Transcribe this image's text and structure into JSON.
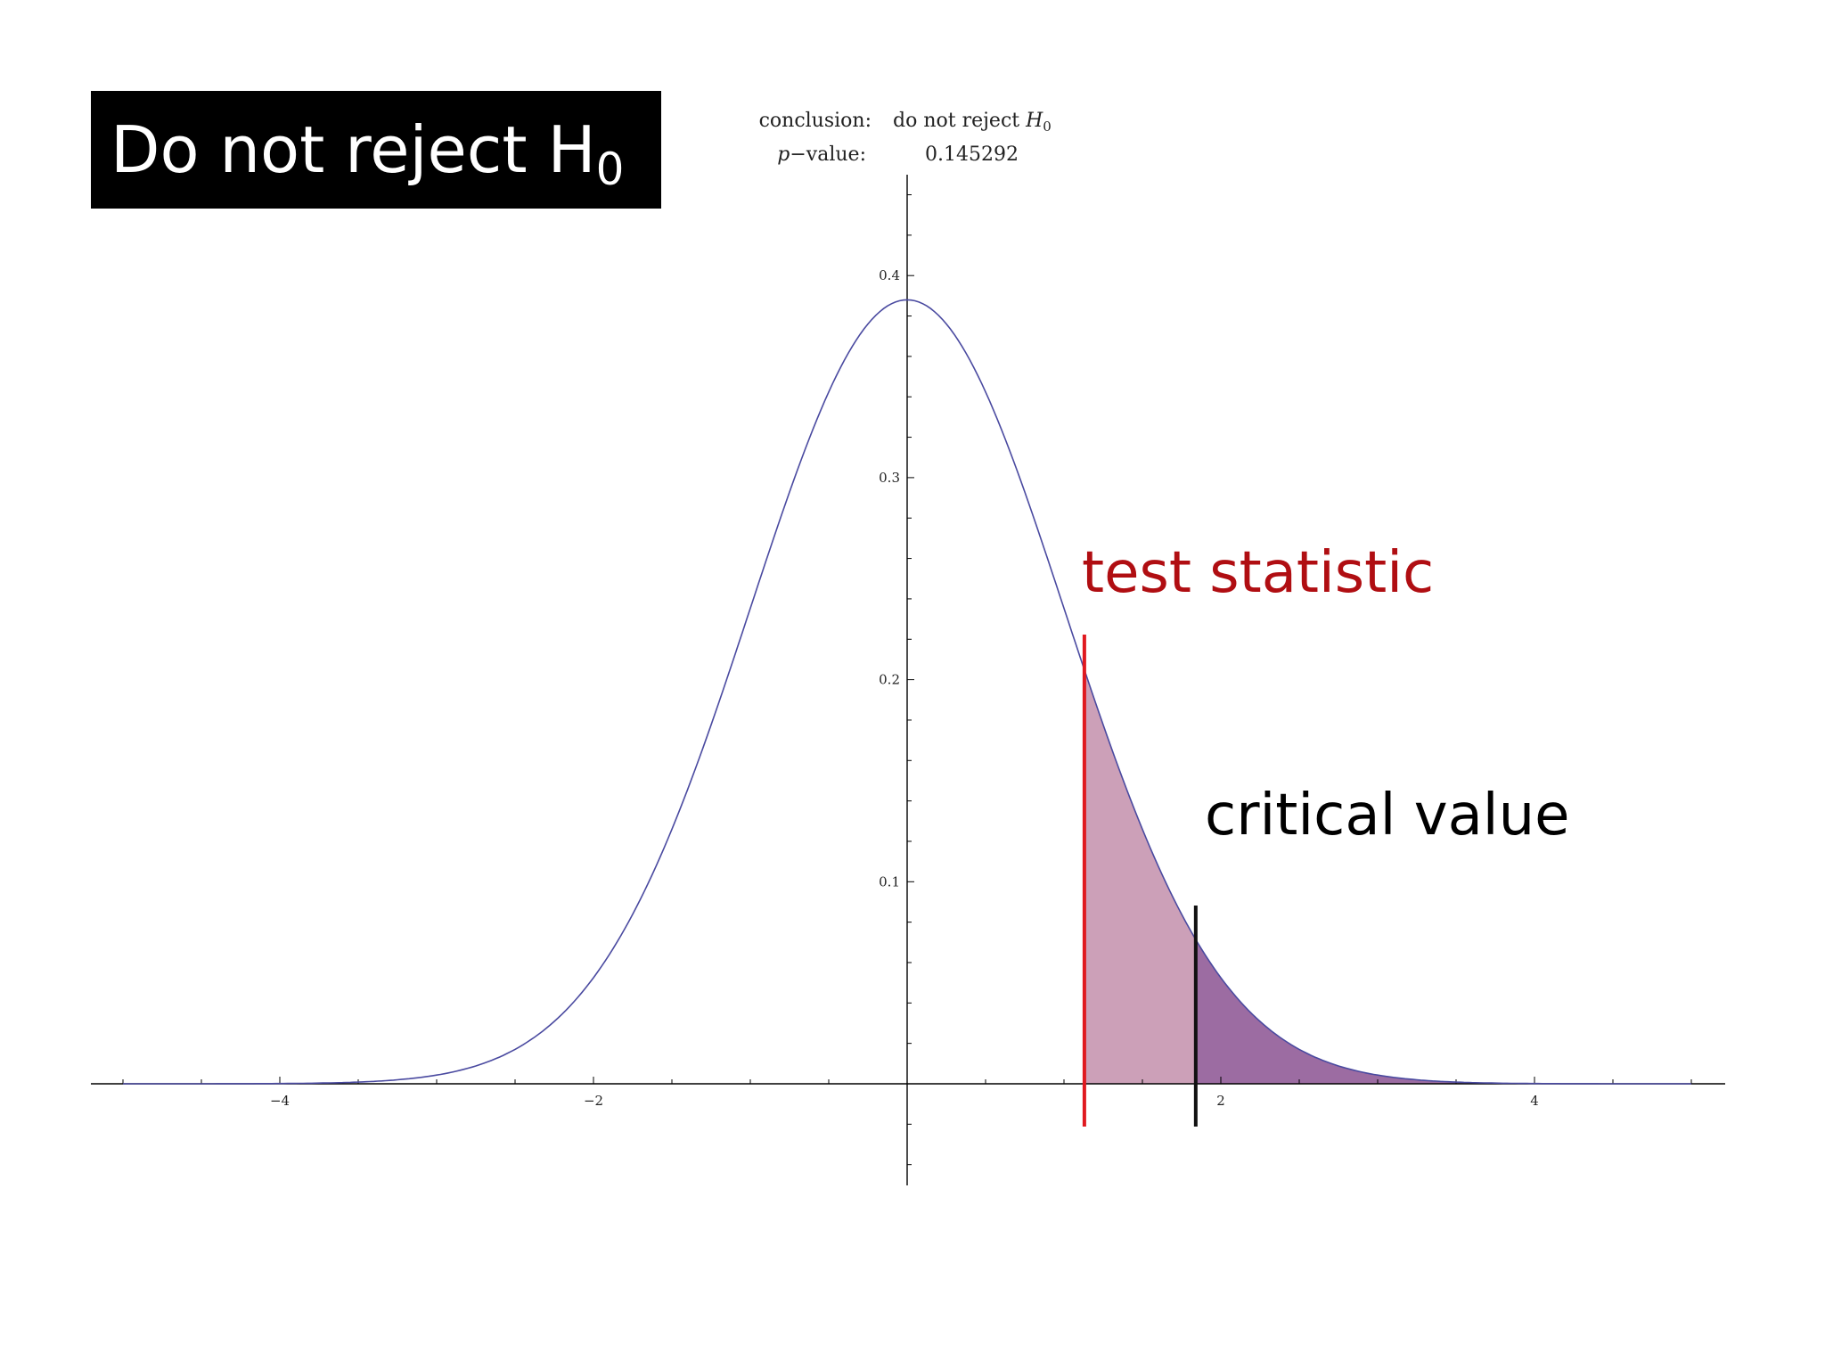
{
  "slide": {
    "title_main": "Do not reject H",
    "title_sub": "0"
  },
  "info_panel": {
    "conclusion_label": "conclusion:",
    "conclusion_value": "do not reject",
    "conclusion_symbol": "H",
    "conclusion_symbol_sub": "0",
    "pvalue_label_italic": "p",
    "pvalue_label_rest": "−value:",
    "pvalue_value": "0.145292"
  },
  "chart_data": {
    "type": "area",
    "distribution": "standard normal density",
    "xlim": [
      -5.2,
      5.2
    ],
    "ylim": [
      -0.05,
      0.45
    ],
    "x_ticks": [
      -4,
      -2,
      2,
      4
    ],
    "x_tick_labels": [
      "−4",
      "−2",
      "2",
      "4"
    ],
    "y_ticks": [
      0.1,
      0.2,
      0.3,
      0.4
    ],
    "y_tick_labels": [
      "0.1",
      "0.2",
      "0.3",
      "0.4"
    ],
    "peak_density": 0.388,
    "test_statistic": 1.13,
    "critical_value": 1.84,
    "curve_color": "#4a4aa0",
    "shade_light_color": "#cca0b8",
    "shade_dark_color": "#9c6ca2",
    "test_statistic_color": "#e0191f",
    "critical_value_color": "#111111",
    "annotations": {
      "test_statistic_label": "test statistic",
      "critical_value_label": "critical value"
    },
    "annotation_colors": {
      "test_statistic": "#b00e12",
      "critical_value": "#000000"
    }
  }
}
